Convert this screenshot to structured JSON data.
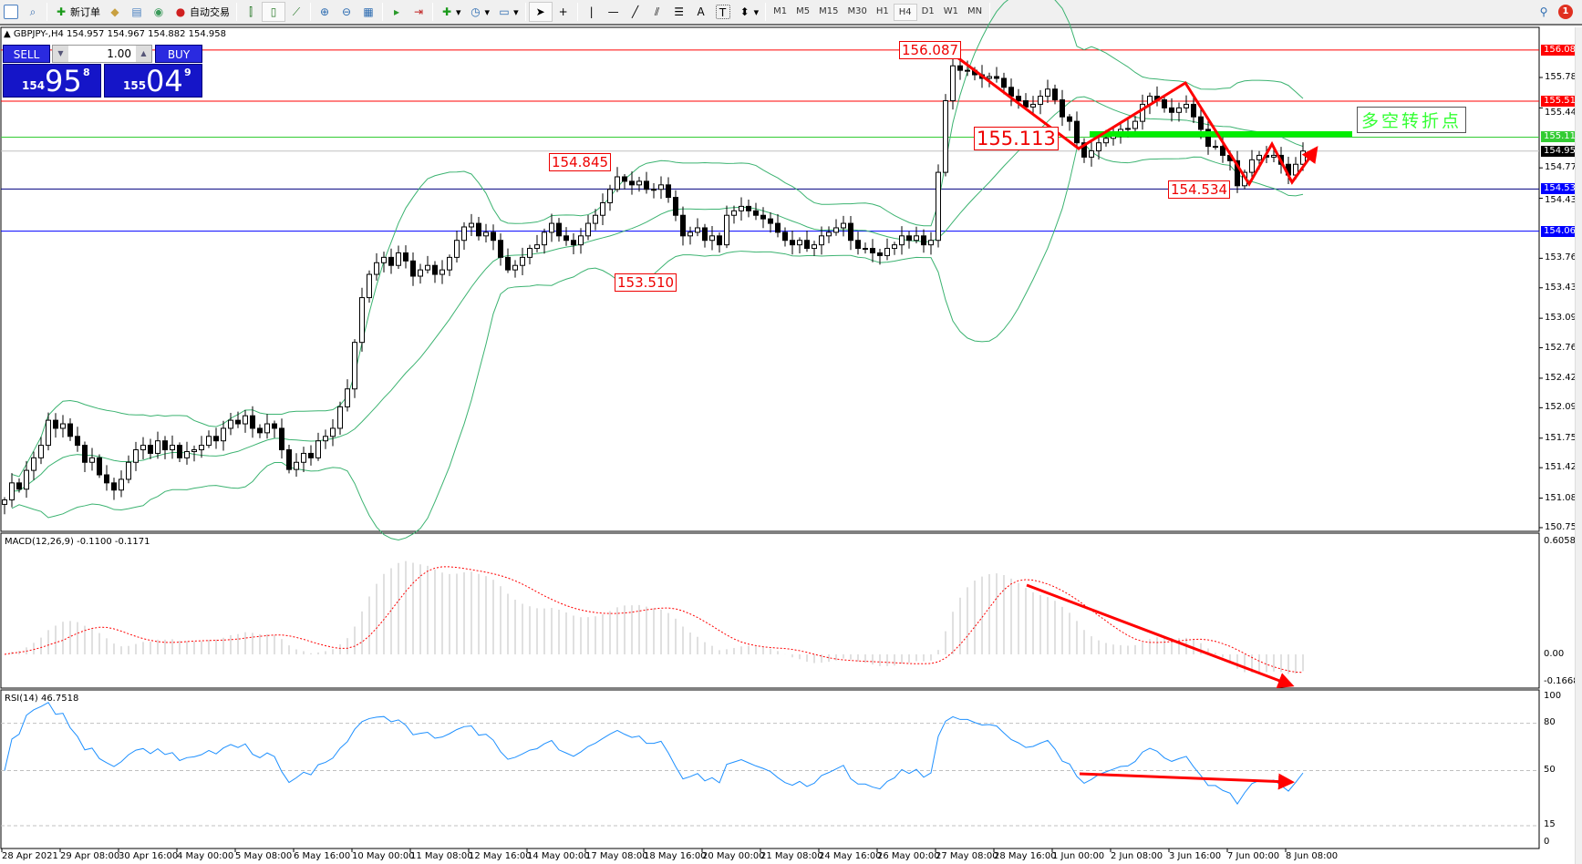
{
  "toolbar": {
    "new_order": "新订单",
    "auto_trading": "自动交易",
    "timeframes": [
      "M1",
      "M5",
      "M15",
      "M30",
      "H1",
      "H4",
      "D1",
      "W1",
      "MN"
    ],
    "active_timeframe": "H4",
    "notification_count": "1",
    "icons": [
      "new-chart-icon",
      "profiles-icon",
      "new-order-icon",
      "metaeditor-icon",
      "navigator-icon",
      "signals-icon",
      "auto-trading-icon",
      "bar-chart-icon",
      "candlestick-icon",
      "line-chart-icon",
      "zoom-in-icon",
      "zoom-out-icon",
      "tile-windows-icon",
      "auto-scroll-icon",
      "chart-shift-icon",
      "indicators-icon",
      "periods-icon",
      "templates-icon",
      "cursor-icon",
      "crosshair-icon",
      "vertical-line-icon",
      "horizontal-line-icon",
      "trendline-icon",
      "fibonacci-icon",
      "channel-icon",
      "text-icon",
      "text-label-icon",
      "arrows-icon",
      "search-icon",
      "notification-icon"
    ],
    "text_tool": "A"
  },
  "chart": {
    "symbol_info": "GBPJPY-,H4  154.957 154.967 154.882 154.958",
    "sell_label": "SELL",
    "buy_label": "BUY",
    "lot": "1.00",
    "bid_small": "154",
    "bid_big": "95",
    "bid_sup": "8",
    "ask_small": "155",
    "ask_big": "04",
    "ask_sup": "9"
  },
  "price_axis": [
    "155.780",
    "155.440",
    "154.770",
    "154.430",
    "153.760",
    "153.430",
    "153.090",
    "152.760",
    "152.420",
    "152.090",
    "151.750",
    "151.420",
    "151.080",
    "150.750"
  ],
  "hlines": [
    {
      "price": 156.087,
      "label": "156.087",
      "color": "#ff0000"
    },
    {
      "price": 155.515,
      "label": "155.515",
      "color": "#ff0000"
    },
    {
      "price": 155.113,
      "label": "155.113",
      "color": "#33cc33"
    },
    {
      "price": 154.958,
      "label": "154.958",
      "color": "#000000",
      "line": "#c0c0c0"
    },
    {
      "price": 154.534,
      "label": "154.534",
      "color": "#0000ff",
      "line": "#000080"
    },
    {
      "price": 154.063,
      "label": "154.063",
      "color": "#0000ff"
    }
  ],
  "annotations": [
    "156.087",
    "155.113",
    "154.845",
    "153.510",
    "154.534"
  ],
  "callout": "多空转折点",
  "macd": {
    "label": "MACD(12,26,9) -0.1100 -0.1171",
    "axis": [
      "0.6058",
      "0.00",
      "-0.1668"
    ]
  },
  "rsi": {
    "label": "RSI(14) 46.7518",
    "axis": [
      "100",
      "80",
      "50",
      "15",
      "0"
    ]
  },
  "time_axis": [
    "28 Apr 2021",
    "29 Apr 08:00",
    "30 Apr 16:00",
    "4 May 00:00",
    "5 May 08:00",
    "6 May 16:00",
    "10 May 00:00",
    "11 May 08:00",
    "12 May 16:00",
    "14 May 00:00",
    "17 May 08:00",
    "18 May 16:00",
    "20 May 00:00",
    "21 May 08:00",
    "24 May 16:00",
    "26 May 00:00",
    "27 May 08:00",
    "28 May 16:00",
    "1 Jun 00:00",
    "2 Jun 08:00",
    "3 Jun 16:00",
    "7 Jun 00:00",
    "8 Jun 08:00"
  ],
  "colors": {
    "bands": "#3cb371",
    "arrows": "#ff0000",
    "rsi_line": "#1e90ff",
    "macd_hist": "#c0c0c0",
    "macd_signal": "#ff0000",
    "pivot_line": "#00ee00"
  },
  "chart_data": {
    "type": "candlestick",
    "symbol": "GBPJPY",
    "timeframe": "H4",
    "ylim": [
      150.75,
      156.1
    ],
    "indicators": [
      "Bollinger Bands(20,2)",
      "MACD(12,26,9)",
      "RSI(14)"
    ],
    "close": [
      151.06,
      151.25,
      151.18,
      151.39,
      151.53,
      151.67,
      151.95,
      151.86,
      151.91,
      151.77,
      151.67,
      151.48,
      151.53,
      151.34,
      151.25,
      151.17,
      151.29,
      151.48,
      151.62,
      151.67,
      151.58,
      151.72,
      151.62,
      151.67,
      151.53,
      151.6,
      151.62,
      151.67,
      151.77,
      151.72,
      151.86,
      151.95,
      151.91,
      152.0,
      151.86,
      151.81,
      151.91,
      151.86,
      151.62,
      151.4,
      151.48,
      151.58,
      151.53,
      151.72,
      151.77,
      151.86,
      152.1,
      152.3,
      152.82,
      153.32,
      153.58,
      153.71,
      153.77,
      153.68,
      153.82,
      153.73,
      153.56,
      153.63,
      153.68,
      153.58,
      153.63,
      153.77,
      153.96,
      154.11,
      154.15,
      154.01,
      154.05,
      153.96,
      153.77,
      153.63,
      153.68,
      153.77,
      153.87,
      153.91,
      154.05,
      154.15,
      154.01,
      153.96,
      153.91,
      154.01,
      154.15,
      154.24,
      154.38,
      154.53,
      154.67,
      154.62,
      154.58,
      154.62,
      154.53,
      154.53,
      154.58,
      154.44,
      154.24,
      154.01,
      154.05,
      154.1,
      153.96,
      154.01,
      153.91,
      154.24,
      154.29,
      154.34,
      154.29,
      154.24,
      154.2,
      154.15,
      154.05,
      153.96,
      153.91,
      153.96,
      153.87,
      153.91,
      154.01,
      154.05,
      154.1,
      154.15,
      153.96,
      153.87,
      153.87,
      153.82,
      153.79,
      153.87,
      153.91,
      154.01,
      153.96,
      154.01,
      153.91,
      153.96,
      154.72,
      155.52,
      155.91,
      155.86,
      155.86,
      155.81,
      155.77,
      155.79,
      155.77,
      155.67,
      155.57,
      155.52,
      155.45,
      155.48,
      155.57,
      155.65,
      155.53,
      155.34,
      155.29,
      155.05,
      154.89,
      154.96,
      155.05,
      155.1,
      155.15,
      155.2,
      155.21,
      155.29,
      155.48,
      155.57,
      155.53,
      155.44,
      155.39,
      155.44,
      155.48,
      155.34,
      155.2,
      155.01,
      155.01,
      154.91,
      154.85,
      154.57,
      154.72,
      154.86,
      154.91,
      154.89,
      154.91,
      154.81,
      154.69,
      154.81,
      154.958
    ]
  }
}
